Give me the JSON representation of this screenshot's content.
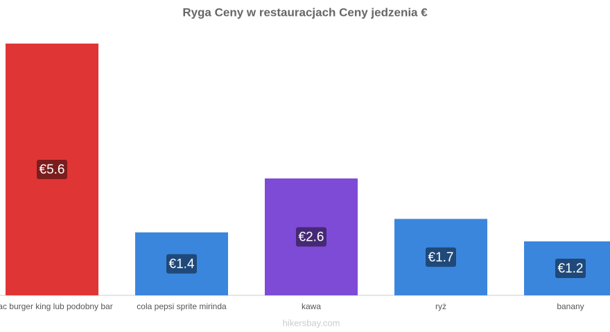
{
  "chart_data": {
    "type": "bar",
    "title": "Ryga Ceny w restauracjach Ceny jedzenia €",
    "categories": [
      "mac burger king lub podobny bar",
      "cola pepsi sprite mirinda",
      "kawa",
      "ryż",
      "banany"
    ],
    "values": [
      5.6,
      1.4,
      2.6,
      1.7,
      1.2
    ],
    "value_labels": [
      "€5.6",
      "€1.4",
      "€2.6",
      "€1.7",
      "€1.2"
    ],
    "colors": [
      "#e03535",
      "#3a86dd",
      "#7e4bd6",
      "#3a86dd",
      "#3a86dd"
    ],
    "ylim": [
      0,
      6
    ],
    "watermark": "hikersbay.com"
  }
}
